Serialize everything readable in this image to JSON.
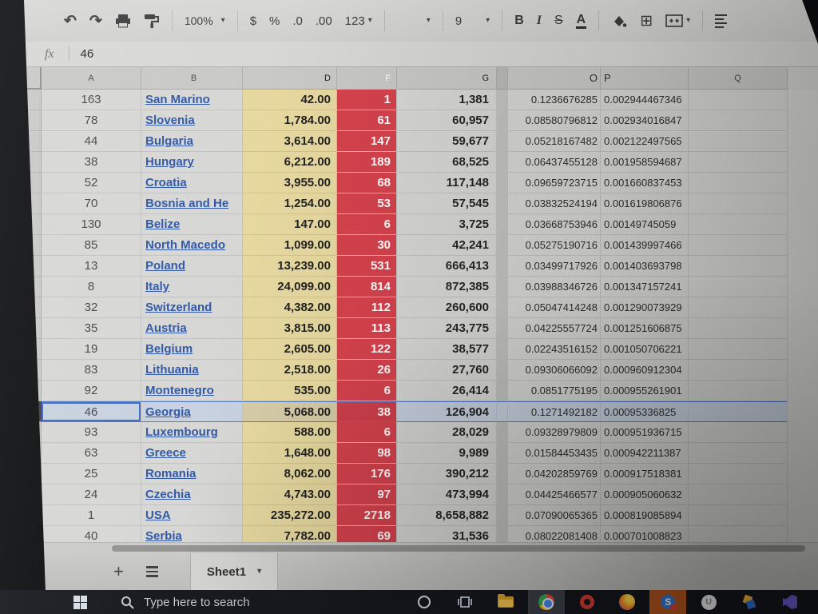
{
  "toolbar": {
    "zoom": "100%",
    "currency": "$",
    "percent": "%",
    "decimal_decrease": ".0",
    "decimal_increase": ".00",
    "number_format": "123",
    "font_size": "9",
    "bold": "B",
    "italic": "I",
    "strikethrough": "S",
    "text_color": "A"
  },
  "icons": {
    "undo": "↶",
    "redo": "↷",
    "dropdown": "▾",
    "borders": "⊞"
  },
  "formula_bar": {
    "fx": "fx",
    "value": "46"
  },
  "grid": {
    "column_headers": [
      "A",
      "B",
      "D",
      "F",
      "G",
      "O",
      "P",
      "Q"
    ],
    "selected_row": 16,
    "rows": [
      {
        "n": 1,
        "a": "163",
        "country": "San Marino",
        "d": "42.00",
        "f": "1",
        "g": "1,381",
        "o": "0.1236676285",
        "p": "0.002944467346"
      },
      {
        "n": 2,
        "a": "78",
        "country": "Slovenia",
        "d": "1,784.00",
        "f": "61",
        "g": "60,957",
        "o": "0.08580796812",
        "p": "0.002934016847"
      },
      {
        "n": 3,
        "a": "44",
        "country": "Bulgaria",
        "d": "3,614.00",
        "f": "147",
        "g": "59,677",
        "o": "0.05218167482",
        "p": "0.002122497565"
      },
      {
        "n": 4,
        "a": "38",
        "country": "Hungary",
        "d": "6,212.00",
        "f": "189",
        "g": "68,525",
        "o": "0.06437455128",
        "p": "0.001958594687"
      },
      {
        "n": 5,
        "a": "52",
        "country": "Croatia",
        "d": "3,955.00",
        "f": "68",
        "g": "117,148",
        "o": "0.09659723715",
        "p": "0.001660837453"
      },
      {
        "n": 6,
        "a": "70",
        "country": "Bosnia and He",
        "d": "1,254.00",
        "f": "53",
        "g": "57,545",
        "o": "0.03832524194",
        "p": "0.001619806876"
      },
      {
        "n": 7,
        "a": "130",
        "country": "Belize",
        "d": "147.00",
        "f": "6",
        "g": "3,725",
        "o": "0.03668753946",
        "p": "0.00149745059"
      },
      {
        "n": 8,
        "a": "85",
        "country": "North Macedo",
        "d": "1,099.00",
        "f": "30",
        "g": "42,241",
        "o": "0.05275190716",
        "p": "0.001439997466"
      },
      {
        "n": 9,
        "a": "13",
        "country": "Poland",
        "d": "13,239.00",
        "f": "531",
        "g": "666,413",
        "o": "0.03499717926",
        "p": "0.001403693798"
      },
      {
        "n": 10,
        "a": "8",
        "country": "Italy",
        "d": "24,099.00",
        "f": "814",
        "g": "872,385",
        "o": "0.03988346726",
        "p": "0.001347157241"
      },
      {
        "n": 11,
        "a": "32",
        "country": "Switzerland",
        "d": "4,382.00",
        "f": "112",
        "g": "260,600",
        "o": "0.05047414248",
        "p": "0.001290073929"
      },
      {
        "n": 12,
        "a": "35",
        "country": "Austria",
        "d": "3,815.00",
        "f": "113",
        "g": "243,775",
        "o": "0.04225557724",
        "p": "0.001251606875"
      },
      {
        "n": 13,
        "a": "19",
        "country": "Belgium",
        "d": "2,605.00",
        "f": "122",
        "g": "38,577",
        "o": "0.02243516152",
        "p": "0.001050706221"
      },
      {
        "n": 14,
        "a": "83",
        "country": "Lithuania",
        "d": "2,518.00",
        "f": "26",
        "g": "27,760",
        "o": "0.09306066092",
        "p": "0.000960912304"
      },
      {
        "n": 15,
        "a": "92",
        "country": "Montenegro",
        "d": "535.00",
        "f": "6",
        "g": "26,414",
        "o": "0.0851775195",
        "p": "0.000955261901"
      },
      {
        "n": 16,
        "a": "46",
        "country": "Georgia",
        "d": "5,068.00",
        "f": "38",
        "g": "126,904",
        "o": "0.1271492182",
        "p": "0.00095336825"
      },
      {
        "n": 17,
        "a": "93",
        "country": "Luxembourg",
        "d": "588.00",
        "f": "6",
        "g": "28,029",
        "o": "0.09328979809",
        "p": "0.000951936715"
      },
      {
        "n": 18,
        "a": "63",
        "country": "Greece",
        "d": "1,648.00",
        "f": "98",
        "g": "9,989",
        "o": "0.01584453435",
        "p": "0.000942211387"
      },
      {
        "n": 19,
        "a": "25",
        "country": "Romania",
        "d": "8,062.00",
        "f": "176",
        "g": "390,212",
        "o": "0.04202859769",
        "p": "0.000917518381"
      },
      {
        "n": 20,
        "a": "24",
        "country": "Czechia",
        "d": "4,743.00",
        "f": "97",
        "g": "473,994",
        "o": "0.04425466577",
        "p": "0.000905060632"
      },
      {
        "n": 21,
        "a": "1",
        "country": "USA",
        "d": "235,272.00",
        "f": "2718",
        "g": "8,658,882",
        "o": "0.07090065365",
        "p": "0.000819085894"
      },
      {
        "n": 22,
        "a": "40",
        "country": "Serbia",
        "d": "7,782.00",
        "f": "69",
        "g": "31,536",
        "o": "0.08022081408",
        "p": "0.000701008823"
      }
    ]
  },
  "sheet_bar": {
    "add": "+",
    "tab_label": "Sheet1"
  },
  "taskbar": {
    "search_text": "Type here to search"
  },
  "colors": {
    "column_d_fill": "#e6d89e",
    "column_f_fill": "#d5404b",
    "link_blue": "#2d55a5",
    "selection_blue": "#c7d1df"
  }
}
